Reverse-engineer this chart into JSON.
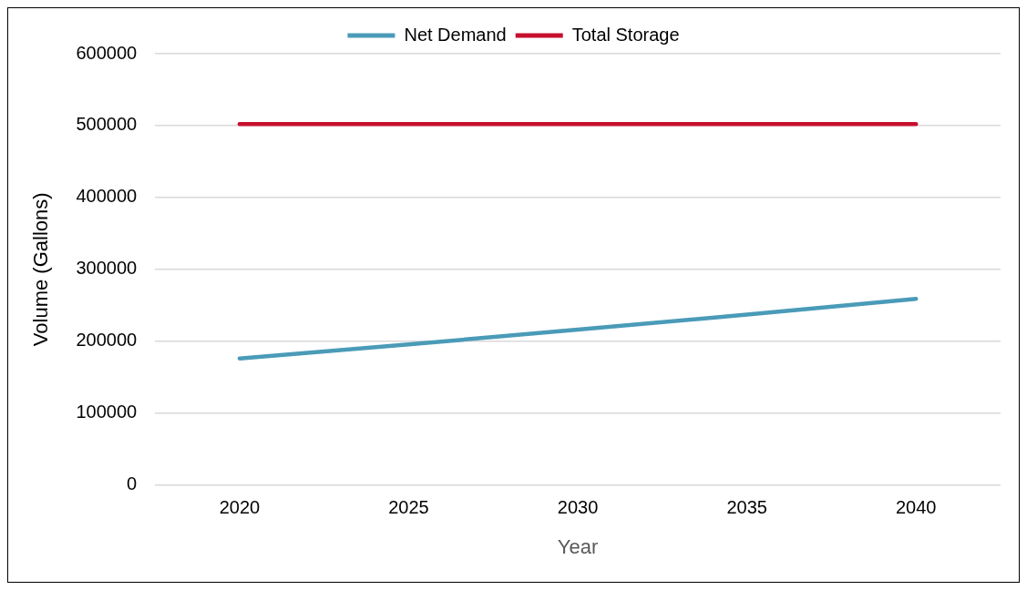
{
  "chart_data": {
    "type": "line",
    "xlabel": "Year",
    "ylabel": "Volume (Gallons)",
    "categories": [
      "2020",
      "2025",
      "2030",
      "2035",
      "2040"
    ],
    "series": [
      {
        "name": "Net Demand",
        "color": "#4a9bb8",
        "values": [
          176000,
          195500,
          216000,
          237000,
          259000
        ]
      },
      {
        "name": "Total Storage",
        "color": "#c8102e",
        "values": [
          502000,
          502000,
          502000,
          502000,
          502000
        ]
      }
    ],
    "ylim": [
      0,
      600000
    ],
    "yticks": [
      0,
      100000,
      200000,
      300000,
      400000,
      500000,
      600000
    ],
    "grid": "y",
    "legend": "top",
    "marker": "none",
    "line_style": "solid"
  }
}
